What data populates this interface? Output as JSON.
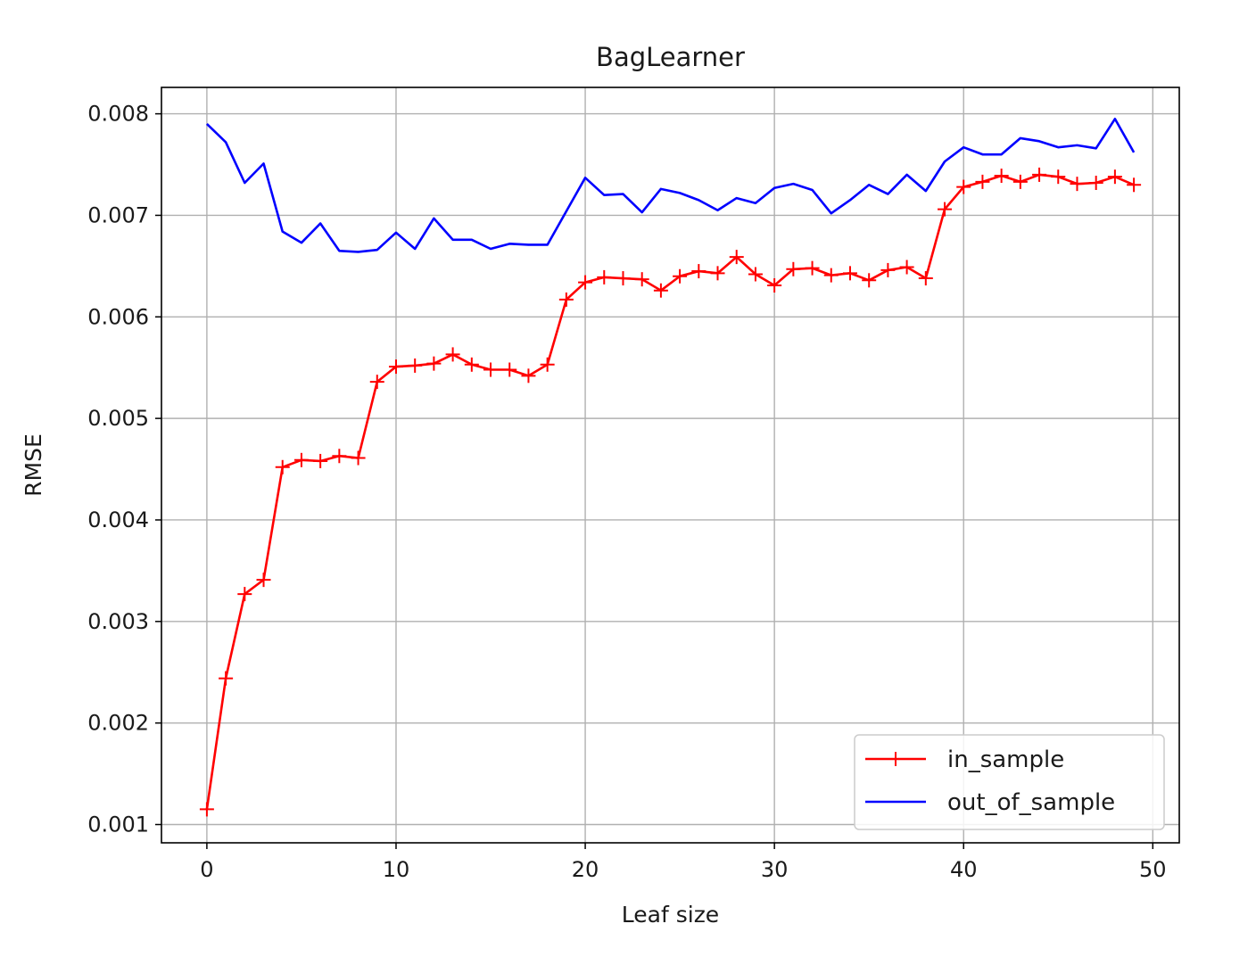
{
  "chart_data": {
    "type": "line",
    "title": "BagLearner",
    "xlabel": "Leaf size",
    "ylabel": "RMSE",
    "xlim": [
      -2.4,
      51.4
    ],
    "ylim": [
      0.00082,
      0.00826
    ],
    "x_ticks": [
      0,
      10,
      20,
      30,
      40,
      50
    ],
    "x_tick_labels": [
      "0",
      "10",
      "20",
      "30",
      "40",
      "50"
    ],
    "y_ticks": [
      0.001,
      0.002,
      0.003,
      0.004,
      0.005,
      0.006,
      0.007,
      0.008
    ],
    "y_tick_labels": [
      "0.001",
      "0.002",
      "0.003",
      "0.004",
      "0.005",
      "0.006",
      "0.007",
      "0.008"
    ],
    "grid": true,
    "legend_position": "lower-right",
    "x": [
      0,
      1,
      2,
      3,
      4,
      5,
      6,
      7,
      8,
      9,
      10,
      11,
      12,
      13,
      14,
      15,
      16,
      17,
      18,
      19,
      20,
      21,
      22,
      23,
      24,
      25,
      26,
      27,
      28,
      29,
      30,
      31,
      32,
      33,
      34,
      35,
      36,
      37,
      38,
      39,
      40,
      41,
      42,
      43,
      44,
      45,
      46,
      47,
      48,
      49
    ],
    "series": [
      {
        "name": "in_sample",
        "color": "#ff0000",
        "marker": "plus",
        "values": [
          0.00115,
          0.00244,
          0.00327,
          0.00341,
          0.00452,
          0.00459,
          0.00458,
          0.00463,
          0.00461,
          0.00536,
          0.00551,
          0.00552,
          0.00554,
          0.00563,
          0.00553,
          0.00548,
          0.00548,
          0.00542,
          0.00553,
          0.00617,
          0.00634,
          0.00639,
          0.00638,
          0.00637,
          0.00626,
          0.0064,
          0.00645,
          0.00643,
          0.00659,
          0.00642,
          0.00631,
          0.00647,
          0.00648,
          0.00641,
          0.00643,
          0.00636,
          0.00646,
          0.00649,
          0.00638,
          0.00706,
          0.00728,
          0.00733,
          0.00739,
          0.00733,
          0.0074,
          0.00738,
          0.00731,
          0.00732,
          0.00738,
          0.0073
        ]
      },
      {
        "name": "out_of_sample",
        "color": "#0000ff",
        "marker": "none",
        "values": [
          0.0079,
          0.00772,
          0.00732,
          0.00751,
          0.00684,
          0.00673,
          0.00692,
          0.00665,
          0.00664,
          0.00666,
          0.00683,
          0.00667,
          0.00697,
          0.00676,
          0.00676,
          0.00667,
          0.00672,
          0.00671,
          0.00671,
          0.00704,
          0.00737,
          0.0072,
          0.00721,
          0.00703,
          0.00726,
          0.00722,
          0.00715,
          0.00705,
          0.00717,
          0.00712,
          0.00727,
          0.00731,
          0.00725,
          0.00702,
          0.00715,
          0.0073,
          0.00721,
          0.0074,
          0.00724,
          0.00753,
          0.00767,
          0.0076,
          0.0076,
          0.00776,
          0.00773,
          0.00767,
          0.00769,
          0.00766,
          0.00795,
          0.00762
        ]
      }
    ]
  }
}
